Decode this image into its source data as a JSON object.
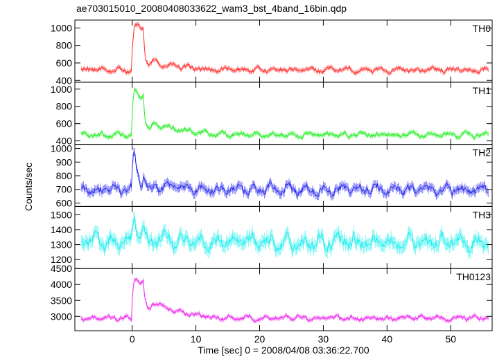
{
  "title": "ae703015010_20080408033622_wam3_bst_4band_16bin.qdp",
  "ylabel": "Counts/sec",
  "xlabel": "Time [sec] 0 = 2008/04/08 03:36:22.700",
  "chart_data": {
    "type": "line",
    "title": "ae703015010_20080408033622_wam3_bst_4band_16bin.qdp",
    "xlabel": "Time [sec] 0 = 2008/04/08 03:36:22.700",
    "ylabel": "Counts/sec",
    "xlim": [
      -9,
      56.5
    ],
    "xticks": [
      0,
      10,
      20,
      30,
      40,
      50
    ],
    "grid": false,
    "panels": [
      {
        "name": "TH0",
        "color": "#ff2a2a",
        "ylim": [
          380,
          1090
        ],
        "yticks": [
          400,
          600,
          800,
          1000
        ],
        "baseline": 520,
        "noise": 45,
        "spike_peak": 1070,
        "second_peak": 1000,
        "step_level": 620
      },
      {
        "name": "TH1",
        "color": "#22ee22",
        "ylim": [
          360,
          1080
        ],
        "yticks": [
          400,
          600,
          800,
          1000
        ],
        "baseline": 470,
        "noise": 45,
        "spike_peak": 1060,
        "second_peak": 930,
        "step_level": 620
      },
      {
        "name": "TH2",
        "color": "#2a2aee",
        "ylim": [
          575,
          1030
        ],
        "yticks": [
          600,
          700,
          800,
          900,
          1000
        ],
        "baseline": 700,
        "noise": 55,
        "spike_peak": 1020,
        "second_peak": 800,
        "step_level": 720
      },
      {
        "name": "TH3",
        "color": "#22eeee",
        "ylim": [
          1140,
          1555
        ],
        "yticks": [
          1200,
          1300,
          1400,
          1500
        ],
        "baseline": 1320,
        "noise": 75,
        "spike_peak": 1500,
        "second_peak": 1400,
        "step_level": 1340
      },
      {
        "name": "TH0123",
        "color": "#ee22ee",
        "ylim": [
          2550,
          4500
        ],
        "yticks": [
          3000,
          3500,
          4000,
          4500
        ],
        "baseline": 2950,
        "noise": 110,
        "spike_peak": 4450,
        "second_peak": 4100,
        "step_level": 3500
      }
    ]
  }
}
